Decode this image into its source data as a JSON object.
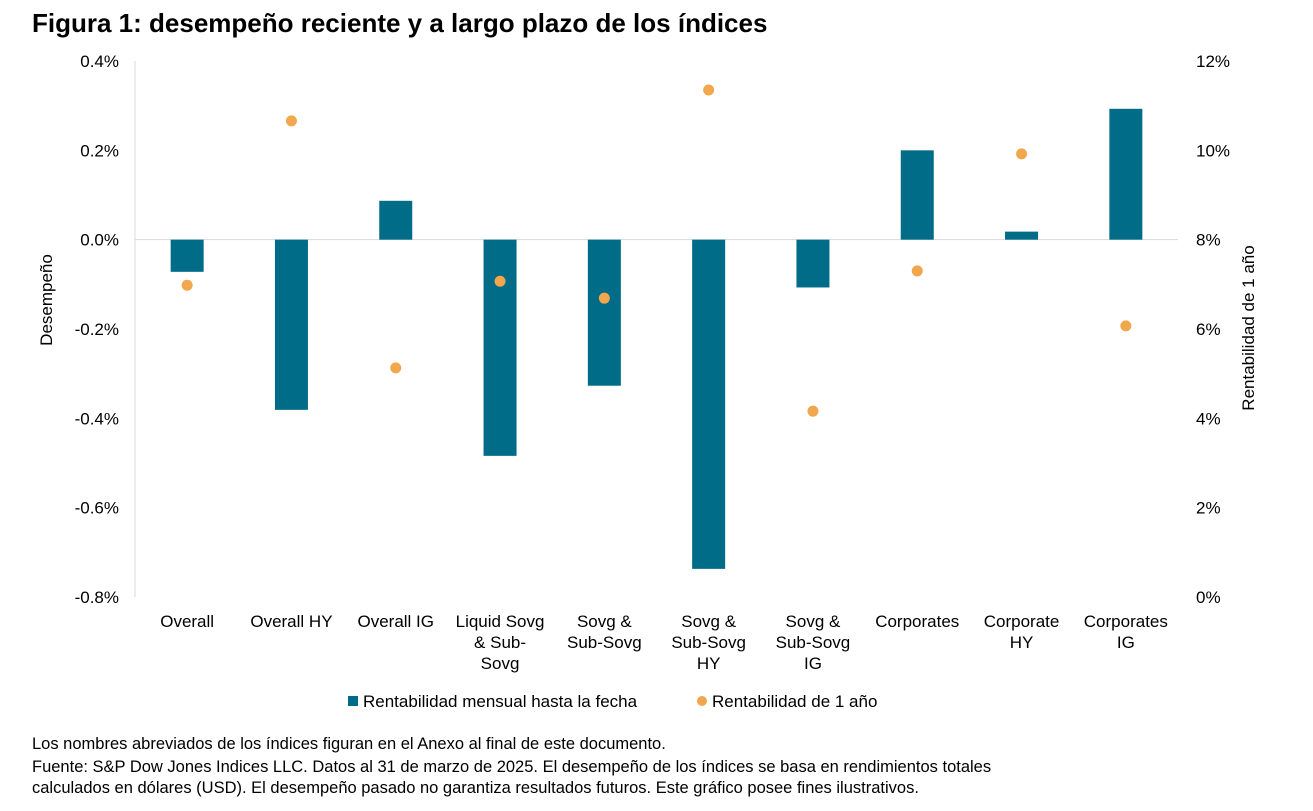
{
  "title": "Figura 1: desempeño reciente y a largo plazo de los índices",
  "chart_data": {
    "type": "bar+scatter",
    "categories": [
      [
        "Overall"
      ],
      [
        "Overall HY"
      ],
      [
        "Overall IG"
      ],
      [
        "Liquid Sovg",
        "& Sub-",
        "Sovg"
      ],
      [
        "Sovg &",
        "Sub-Sovg"
      ],
      [
        "Sovg &",
        "Sub-Sovg",
        "HY"
      ],
      [
        "Sovg &",
        "Sub-Sovg",
        "IG"
      ],
      [
        "Corporates"
      ],
      [
        "Corporate",
        "HY"
      ],
      [
        "Corporates",
        "IG"
      ]
    ],
    "ylabel": "Desempeño",
    "y2label": "Rentabilidad de 1 año",
    "ylim": [
      -0.8,
      0.4
    ],
    "y2lim": [
      0,
      12
    ],
    "yticks": [
      "0.4%",
      "0.2%",
      "0.0%",
      "-0.2%",
      "-0.4%",
      "-0.6%",
      "-0.8%"
    ],
    "y2ticks": [
      "12%",
      "10%",
      "8%",
      "6%",
      "4%",
      "2%",
      "0%"
    ],
    "series": [
      {
        "name": "Rentabilidad mensual hasta la fecha",
        "type": "bar",
        "axis": "left",
        "color": "#006C87",
        "values": [
          -0.072,
          -0.381,
          0.087,
          -0.484,
          -0.327,
          -0.737,
          -0.107,
          0.2,
          0.018,
          0.293
        ]
      },
      {
        "name": "Rentabilidad de 1 año",
        "type": "scatter",
        "axis": "right",
        "color": "#F2A64E",
        "values": [
          6.98,
          10.66,
          5.13,
          7.07,
          6.69,
          11.35,
          4.16,
          7.3,
          9.92,
          6.07
        ]
      }
    ],
    "grid": false,
    "legend": "bottom"
  },
  "footnotes": [
    "Los nombres abreviados de los índices figuran en el Anexo al final de este documento.",
    "Fuente: S&P Dow Jones Indices LLC. Datos al 31 de marzo de 2025. El desempeño de los índices se basa en rendimientos totales",
    "calculados en dólares (USD). El desempeño pasado no garantiza resultados futuros. Este gráfico posee fines ilustrativos."
  ]
}
